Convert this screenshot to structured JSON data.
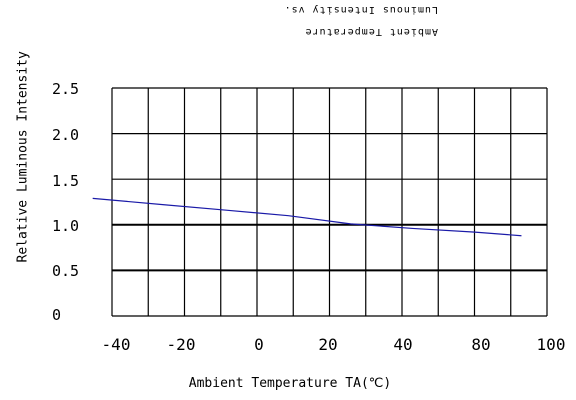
{
  "chart_data": {
    "type": "line",
    "title": [
      "Luminous Intensity vs.",
      "Ambient Temperature"
    ],
    "xlabel": "Ambient Temperature TA(℃)",
    "ylabel": "Relative Luminous Intensity",
    "xlim": [
      -40,
      100
    ],
    "ylim": [
      0,
      2.5
    ],
    "x_ticks": [
      "-40",
      "-20",
      "0",
      "20",
      "40",
      "80",
      "100"
    ],
    "y_ticks": [
      "2.5",
      "2.0",
      "1.5",
      "1.0",
      "0.5",
      "0"
    ],
    "grid": true,
    "series": [
      {
        "color": "#1a1aa8",
        "x": [
          -43,
          -20,
          0,
          20,
          40,
          60,
          80,
          95
        ],
        "y": [
          1.29,
          1.22,
          1.16,
          1.1,
          1.01,
          0.96,
          0.92,
          0.88
        ]
      }
    ]
  }
}
